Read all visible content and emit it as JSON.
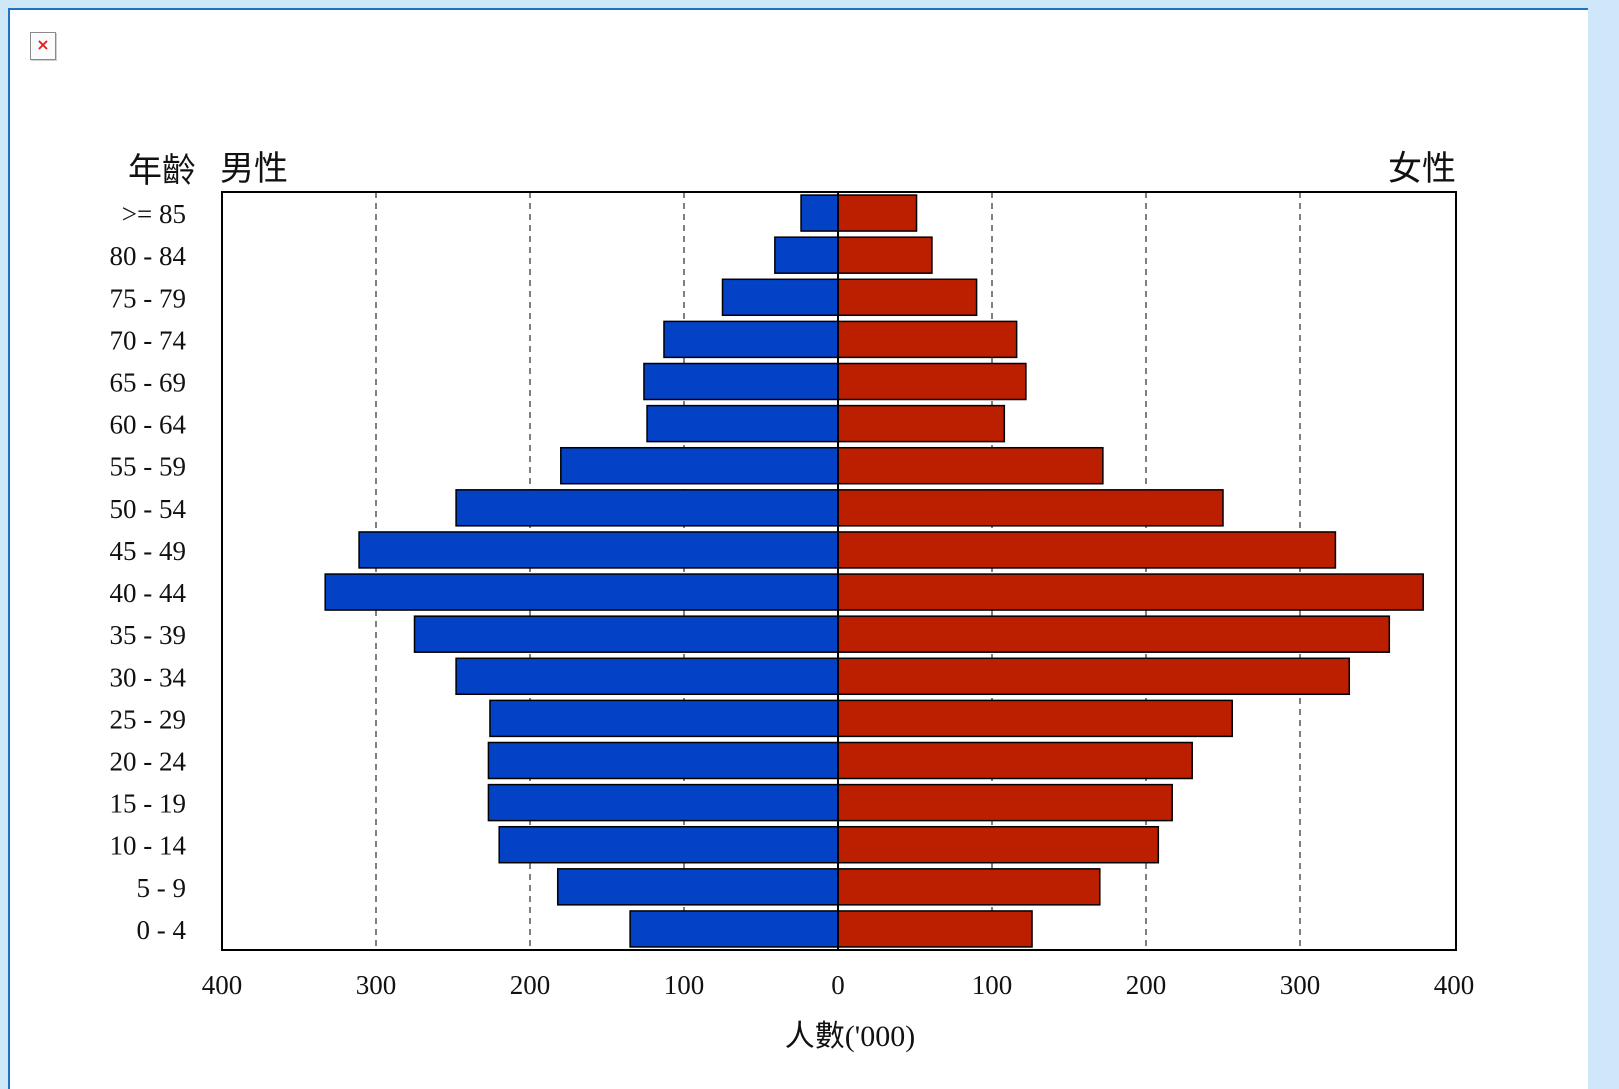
{
  "chart_data": {
    "type": "bar",
    "orientation": "horizontal",
    "title_left": "年齡",
    "label_male": "男性",
    "label_female": "女性",
    "xlabel": "人數('000)",
    "xlim": [
      -400,
      400
    ],
    "x_ticks": [
      "400",
      "300",
      "200",
      "100",
      "0",
      "100",
      "200",
      "300",
      "400"
    ],
    "grid": true,
    "categories": [
      ">= 85",
      "80 - 84",
      "75 - 79",
      "70 - 74",
      "65 - 69",
      "60 - 64",
      "55 - 59",
      "50 - 54",
      "45 - 49",
      "40 - 44",
      "35 - 39",
      "30 - 34",
      "25 - 29",
      "20 - 24",
      "15 - 19",
      "10 - 14",
      "5 - 9",
      "0 - 4"
    ],
    "series": [
      {
        "name": "男性",
        "color": "#0341c5",
        "values": [
          24,
          41,
          75,
          113,
          126,
          124,
          180,
          248,
          311,
          333,
          275,
          248,
          226,
          227,
          227,
          220,
          182,
          135
        ]
      },
      {
        "name": "女性",
        "color": "#bb1f00",
        "values": [
          51,
          61,
          90,
          116,
          122,
          108,
          172,
          250,
          323,
          380,
          358,
          332,
          256,
          230,
          217,
          208,
          170,
          126
        ]
      }
    ]
  }
}
